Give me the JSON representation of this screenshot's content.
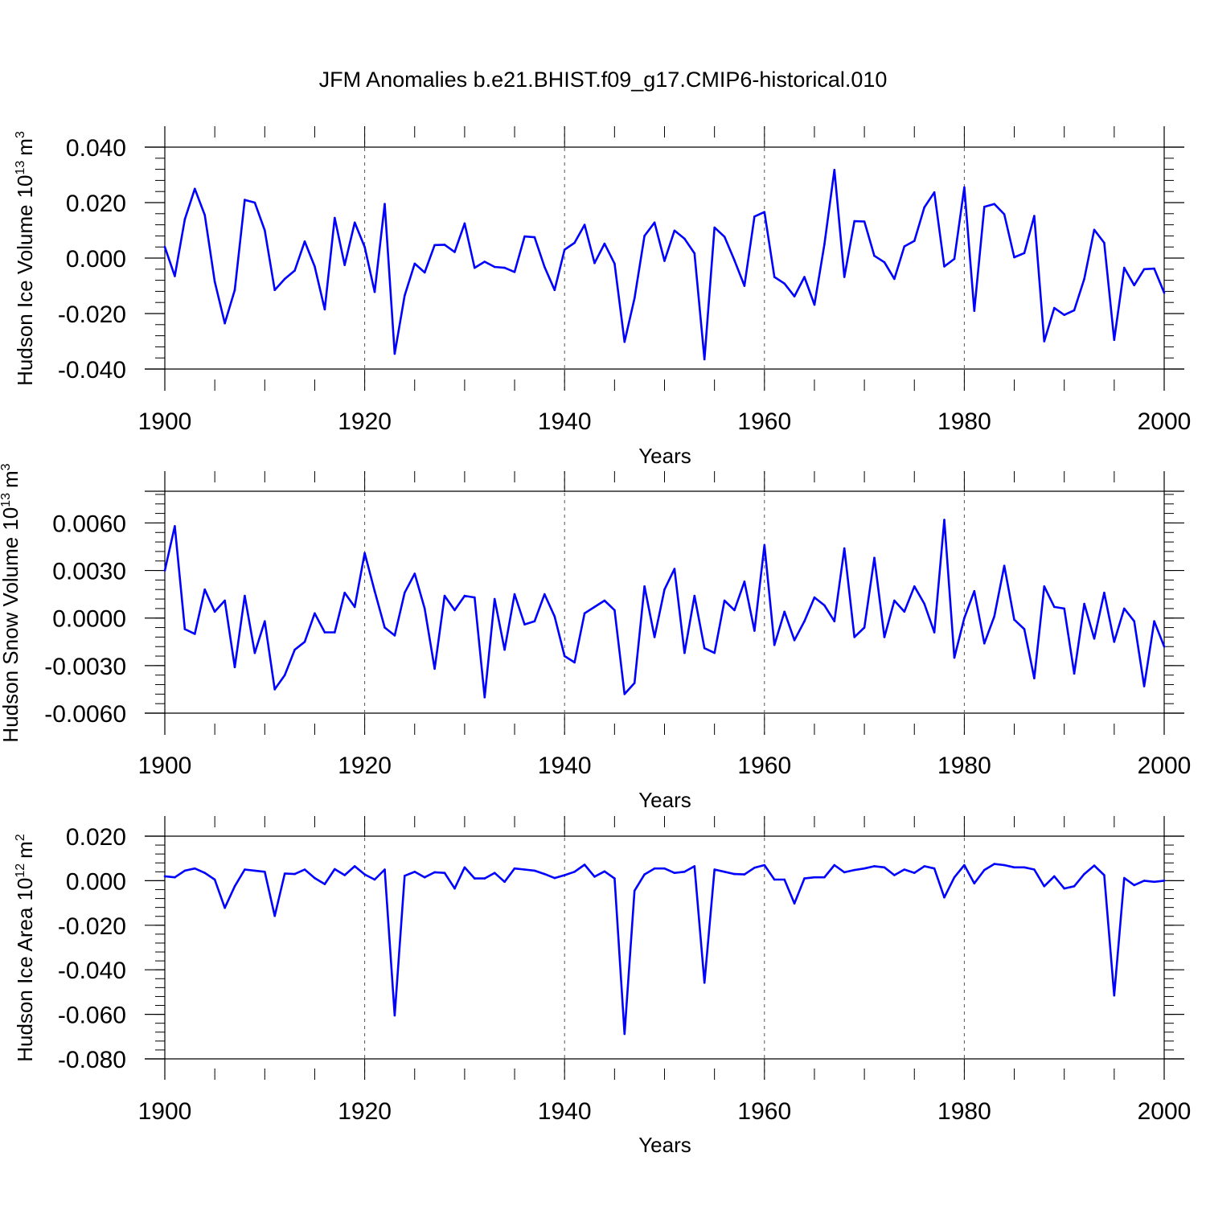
{
  "title": "JFM Anomalies b.e21.BHIST.f09_g17.CMIP6-historical.010",
  "colors": {
    "series": "#0000ff",
    "axis": "#000000",
    "grid": "#000000"
  },
  "chart_data": [
    {
      "type": "line",
      "ylabel": "Hudson Ice Volume",
      "yunit_base": "10",
      "yunit_exp": "13",
      "yunit_symbol": "m",
      "yunit_sym_exp": "3",
      "xlabel": "Years",
      "xlim": [
        1900,
        2000
      ],
      "ylim": [
        -0.04,
        0.04
      ],
      "xticks": [
        "1900",
        "1920",
        "1940",
        "1960",
        "1980",
        "2000"
      ],
      "yticks": [
        {
          "value": 0.04,
          "label": "0.040"
        },
        {
          "value": 0.02,
          "label": "0.020"
        },
        {
          "value": 0.0,
          "label": "0.000"
        },
        {
          "value": -0.02,
          "label": "-0.020"
        },
        {
          "value": -0.04,
          "label": "-0.040"
        }
      ],
      "x": [
        1900,
        1901,
        1902,
        1903,
        1904,
        1905,
        1906,
        1907,
        1908,
        1909,
        1910,
        1911,
        1912,
        1913,
        1914,
        1915,
        1916,
        1917,
        1918,
        1919,
        1920,
        1921,
        1922,
        1923,
        1924,
        1925,
        1926,
        1927,
        1928,
        1929,
        1930,
        1931,
        1932,
        1933,
        1934,
        1935,
        1936,
        1937,
        1938,
        1939,
        1940,
        1941,
        1942,
        1943,
        1944,
        1945,
        1946,
        1947,
        1948,
        1949,
        1950,
        1951,
        1952,
        1953,
        1954,
        1955,
        1956,
        1957,
        1958,
        1959,
        1960,
        1961,
        1962,
        1963,
        1964,
        1965,
        1966,
        1967,
        1968,
        1969,
        1970,
        1971,
        1972,
        1973,
        1974,
        1975,
        1976,
        1977,
        1978,
        1979,
        1980,
        1981,
        1982,
        1983,
        1984,
        1985,
        1986,
        1987,
        1988,
        1989,
        1990,
        1991,
        1992,
        1993,
        1994,
        1995,
        1996,
        1997,
        1998,
        1999,
        2000
      ],
      "values": [
        0.004,
        -0.0065,
        0.014,
        0.025,
        0.0155,
        -0.0085,
        -0.0235,
        -0.0115,
        0.021,
        0.02,
        0.01,
        -0.0115,
        -0.0075,
        -0.0045,
        0.006,
        -0.003,
        -0.0185,
        0.0145,
        -0.0025,
        0.0128,
        0.004,
        -0.0122,
        0.0195,
        -0.0345,
        -0.0135,
        -0.002,
        -0.0052,
        0.0047,
        0.0048,
        0.0022,
        0.0125,
        -0.0035,
        -0.0013,
        -0.0032,
        -0.0035,
        -0.005,
        0.0078,
        0.0075,
        -0.0032,
        -0.0115,
        0.003,
        0.0055,
        0.012,
        -0.0018,
        0.0052,
        -0.002,
        -0.0302,
        -0.0145,
        0.008,
        0.0128,
        -0.001,
        0.0099,
        0.007,
        0.0017,
        -0.0365,
        0.011,
        0.0077,
        -0.0008,
        -0.01,
        0.015,
        0.0166,
        -0.0068,
        -0.0092,
        -0.0138,
        -0.0068,
        -0.0168,
        0.005,
        0.0318,
        -0.0068,
        0.0133,
        0.0132,
        0.0008,
        -0.0015,
        -0.0075,
        0.0042,
        0.0062,
        0.0183,
        0.0237,
        -0.003,
        -0.0003,
        0.0255,
        -0.019,
        0.0185,
        0.0195,
        0.0158,
        0.0003,
        0.0018,
        0.0152,
        -0.03,
        -0.018,
        -0.0205,
        -0.0188,
        -0.0075,
        0.0102,
        0.0055,
        -0.0295,
        -0.0035,
        -0.0098,
        -0.004,
        -0.0038,
        -0.0125
      ]
    },
    {
      "type": "line",
      "ylabel": "Hudson Snow Volume",
      "yunit_base": "10",
      "yunit_exp": "13",
      "yunit_symbol": "m",
      "yunit_sym_exp": "3",
      "xlabel": "Years",
      "xlim": [
        1900,
        2000
      ],
      "ylim": [
        -0.006,
        0.008
      ],
      "xticks": [
        "1900",
        "1920",
        "1940",
        "1960",
        "1980",
        "2000"
      ],
      "yticks": [
        {
          "value": 0.006,
          "label": "0.0060"
        },
        {
          "value": 0.003,
          "label": "0.0030"
        },
        {
          "value": 0.0,
          "label": "0.0000"
        },
        {
          "value": -0.003,
          "label": "-0.0030"
        },
        {
          "value": -0.006,
          "label": "-0.0060"
        }
      ],
      "x": [
        1900,
        1901,
        1902,
        1903,
        1904,
        1905,
        1906,
        1907,
        1908,
        1909,
        1910,
        1911,
        1912,
        1913,
        1914,
        1915,
        1916,
        1917,
        1918,
        1919,
        1920,
        1921,
        1922,
        1923,
        1924,
        1925,
        1926,
        1927,
        1928,
        1929,
        1930,
        1931,
        1932,
        1933,
        1934,
        1935,
        1936,
        1937,
        1938,
        1939,
        1940,
        1941,
        1942,
        1943,
        1944,
        1945,
        1946,
        1947,
        1948,
        1949,
        1950,
        1951,
        1952,
        1953,
        1954,
        1955,
        1956,
        1957,
        1958,
        1959,
        1960,
        1961,
        1962,
        1963,
        1964,
        1965,
        1966,
        1967,
        1968,
        1969,
        1970,
        1971,
        1972,
        1973,
        1974,
        1975,
        1976,
        1977,
        1978,
        1979,
        1980,
        1981,
        1982,
        1983,
        1984,
        1985,
        1986,
        1987,
        1988,
        1989,
        1990,
        1991,
        1992,
        1993,
        1994,
        1995,
        1996,
        1997,
        1998,
        1999,
        2000
      ],
      "values": [
        0.003,
        0.0058,
        -0.0007,
        -0.001,
        0.0018,
        0.0004,
        0.0011,
        -0.0031,
        0.0014,
        -0.0022,
        -0.0002,
        -0.0045,
        -0.0036,
        -0.002,
        -0.0015,
        0.0003,
        -0.0009,
        -0.0009,
        0.0016,
        0.0007,
        0.0041,
        0.0017,
        -0.0006,
        -0.0011,
        0.0016,
        0.0028,
        0.0006,
        -0.0032,
        0.0014,
        0.0005,
        0.0014,
        0.0013,
        -0.005,
        0.0012,
        -0.002,
        0.0015,
        -0.0004,
        -0.0002,
        0.0015,
        0.0001,
        -0.0024,
        -0.0028,
        0.0003,
        0.0007,
        0.0011,
        0.0005,
        -0.0048,
        -0.0041,
        0.002,
        -0.0012,
        0.0018,
        0.0031,
        -0.0022,
        0.0014,
        -0.0019,
        -0.0022,
        0.0011,
        0.0005,
        0.0023,
        -0.0008,
        0.0046,
        -0.0017,
        0.0004,
        -0.0014,
        -0.0002,
        0.0013,
        0.0008,
        -0.0002,
        0.0044,
        -0.0012,
        -0.0006,
        0.0038,
        -0.0012,
        0.0011,
        0.0004,
        0.002,
        0.0009,
        -0.0009,
        0.0062,
        -0.0025,
        0.0,
        0.0017,
        -0.0016,
        0.0001,
        0.0033,
        -0.0001,
        -0.0007,
        -0.0038,
        0.002,
        0.0007,
        0.0006,
        -0.0035,
        0.0009,
        -0.0013,
        0.0016,
        -0.0015,
        0.0006,
        -0.0002,
        -0.0043,
        -0.0002,
        -0.0018
      ]
    },
    {
      "type": "line",
      "ylabel": "Hudson Ice Area",
      "yunit_base": "10",
      "yunit_exp": "12",
      "yunit_symbol": "m",
      "yunit_sym_exp": "2",
      "xlabel": "Years",
      "xlim": [
        1900,
        2000
      ],
      "ylim": [
        -0.08,
        0.02
      ],
      "xticks": [
        "1900",
        "1920",
        "1940",
        "1960",
        "1980",
        "2000"
      ],
      "yticks": [
        {
          "value": 0.02,
          "label": "0.020"
        },
        {
          "value": 0.0,
          "label": "0.000"
        },
        {
          "value": -0.02,
          "label": "-0.020"
        },
        {
          "value": -0.04,
          "label": "-0.040"
        },
        {
          "value": -0.06,
          "label": "-0.060"
        },
        {
          "value": -0.08,
          "label": "-0.080"
        }
      ],
      "x": [
        1900,
        1901,
        1902,
        1903,
        1904,
        1905,
        1906,
        1907,
        1908,
        1909,
        1910,
        1911,
        1912,
        1913,
        1914,
        1915,
        1916,
        1917,
        1918,
        1919,
        1920,
        1921,
        1922,
        1923,
        1924,
        1925,
        1926,
        1927,
        1928,
        1929,
        1930,
        1931,
        1932,
        1933,
        1934,
        1935,
        1936,
        1937,
        1938,
        1939,
        1940,
        1941,
        1942,
        1943,
        1944,
        1945,
        1946,
        1947,
        1948,
        1949,
        1950,
        1951,
        1952,
        1953,
        1954,
        1955,
        1956,
        1957,
        1958,
        1959,
        1960,
        1961,
        1962,
        1963,
        1964,
        1965,
        1966,
        1967,
        1968,
        1969,
        1970,
        1971,
        1972,
        1973,
        1974,
        1975,
        1976,
        1977,
        1978,
        1979,
        1980,
        1981,
        1982,
        1983,
        1984,
        1985,
        1986,
        1987,
        1988,
        1989,
        1990,
        1991,
        1992,
        1993,
        1994,
        1995,
        1996,
        1997,
        1998,
        1999,
        2000
      ],
      "values": [
        0.002,
        0.0015,
        0.0045,
        0.0055,
        0.0035,
        0.0005,
        -0.0122,
        -0.0025,
        0.005,
        0.0045,
        0.004,
        -0.0158,
        0.0032,
        0.003,
        0.005,
        0.0012,
        -0.0015,
        0.0052,
        0.0025,
        0.0065,
        0.0028,
        0.0005,
        0.005,
        -0.0605,
        0.0022,
        0.004,
        0.0015,
        0.0038,
        0.0035,
        -0.0035,
        0.006,
        0.001,
        0.001,
        0.0035,
        -0.0005,
        0.0055,
        0.005,
        0.0045,
        0.003,
        0.0012,
        0.0025,
        0.004,
        0.0072,
        0.0018,
        0.0042,
        0.001,
        -0.0688,
        -0.0045,
        0.0028,
        0.0055,
        0.0055,
        0.0035,
        0.004,
        0.0065,
        -0.0458,
        0.005,
        0.004,
        0.003,
        0.0028,
        0.0058,
        0.007,
        0.0005,
        0.0005,
        -0.0102,
        0.001,
        0.0015,
        0.0015,
        0.007,
        0.0038,
        0.0048,
        0.0055,
        0.0065,
        0.006,
        0.0025,
        0.005,
        0.0035,
        0.0065,
        0.0055,
        -0.0075,
        0.0015,
        0.007,
        -0.0012,
        0.0048,
        0.0075,
        0.007,
        0.006,
        0.006,
        0.005,
        -0.0025,
        0.002,
        -0.0035,
        -0.0025,
        0.003,
        0.0068,
        0.0025,
        -0.0515,
        0.0012,
        -0.002,
        0.0,
        -0.0005,
        0.0
      ]
    }
  ]
}
